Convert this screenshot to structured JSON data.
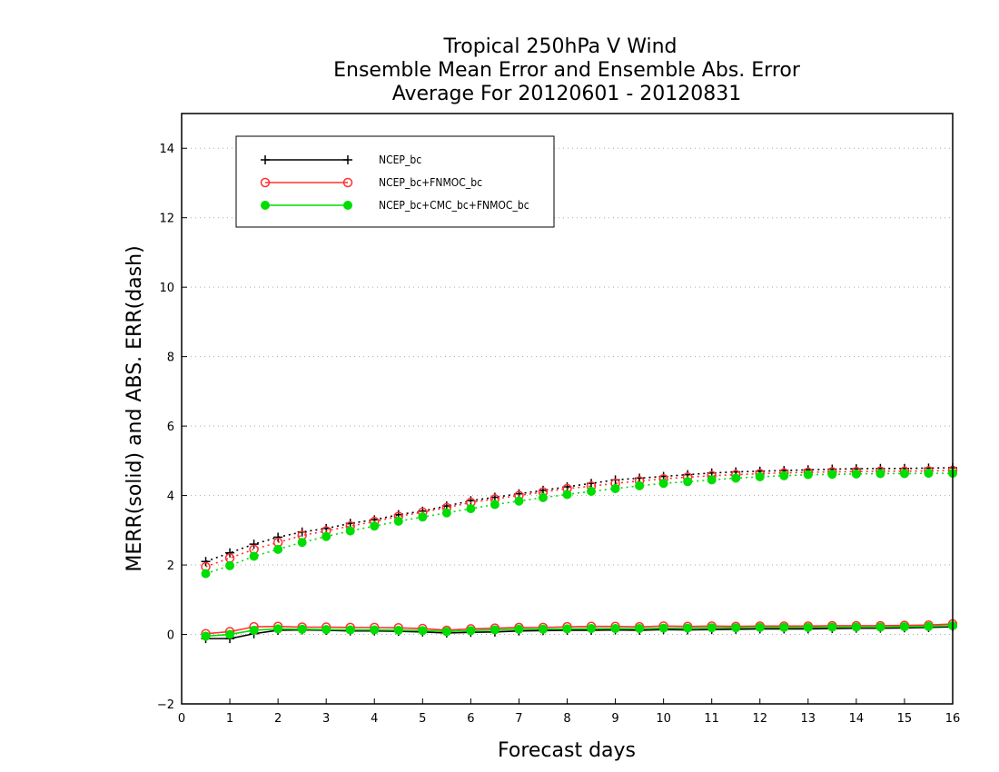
{
  "chart_data": {
    "type": "line",
    "title_lines": [
      "Tropical 250hPa V Wind",
      "Ensemble Mean Error and Ensemble Abs. Error",
      "Average For 20120601 - 20120831"
    ],
    "xlabel": "Forecast days",
    "ylabel": "MERR(solid) and ABS. ERR(dash)",
    "xlim": [
      0,
      16
    ],
    "ylim": [
      -2,
      15
    ],
    "xticks": [
      0,
      1,
      2,
      3,
      4,
      5,
      6,
      7,
      8,
      9,
      10,
      11,
      12,
      13,
      14,
      15,
      16
    ],
    "yticks": [
      -2,
      0,
      2,
      4,
      6,
      8,
      10,
      12,
      14
    ],
    "grid": "horizontal dotted",
    "legend_position": "top-left",
    "x": [
      0.5,
      1.0,
      1.5,
      2.0,
      2.5,
      3.0,
      3.5,
      4.0,
      4.5,
      5.0,
      5.5,
      6.0,
      6.5,
      7.0,
      7.5,
      8.0,
      8.5,
      9.0,
      9.5,
      10.0,
      10.5,
      11.0,
      11.5,
      12.0,
      12.5,
      13.0,
      13.5,
      14.0,
      14.5,
      15.0,
      15.5,
      16.0
    ],
    "series": [
      {
        "name": "NCEP_bc",
        "color": "#000000",
        "marker": "plus",
        "merr": [
          -0.12,
          -0.12,
          0.02,
          0.12,
          0.13,
          0.12,
          0.1,
          0.1,
          0.09,
          0.07,
          0.04,
          0.06,
          0.07,
          0.1,
          0.11,
          0.12,
          0.12,
          0.13,
          0.12,
          0.14,
          0.13,
          0.14,
          0.15,
          0.16,
          0.16,
          0.16,
          0.17,
          0.18,
          0.18,
          0.19,
          0.2,
          0.22
        ],
        "abs_err": [
          2.1,
          2.35,
          2.6,
          2.8,
          2.95,
          3.05,
          3.2,
          3.3,
          3.45,
          3.55,
          3.7,
          3.85,
          3.95,
          4.05,
          4.15,
          4.25,
          4.35,
          4.45,
          4.5,
          4.55,
          4.6,
          4.65,
          4.68,
          4.7,
          4.72,
          4.74,
          4.76,
          4.77,
          4.78,
          4.78,
          4.79,
          4.8
        ]
      },
      {
        "name": "NCEP_bc+FNMOC_bc",
        "color": "#ff3030",
        "marker": "open-circle",
        "merr": [
          0.02,
          0.08,
          0.22,
          0.23,
          0.21,
          0.21,
          0.2,
          0.2,
          0.19,
          0.17,
          0.12,
          0.16,
          0.18,
          0.2,
          0.2,
          0.22,
          0.23,
          0.23,
          0.22,
          0.24,
          0.23,
          0.24,
          0.23,
          0.24,
          0.24,
          0.24,
          0.25,
          0.25,
          0.25,
          0.26,
          0.27,
          0.3
        ],
        "abs_err": [
          1.95,
          2.2,
          2.45,
          2.65,
          2.85,
          2.98,
          3.12,
          3.25,
          3.4,
          3.52,
          3.65,
          3.8,
          3.9,
          4.0,
          4.1,
          4.2,
          4.27,
          4.35,
          4.42,
          4.48,
          4.53,
          4.57,
          4.6,
          4.63,
          4.65,
          4.67,
          4.68,
          4.69,
          4.7,
          4.7,
          4.71,
          4.72
        ]
      },
      {
        "name": "NCEP_bc+CMC_bc+FNMOC_bc",
        "color": "#00dd00",
        "marker": "filled-circle",
        "merr": [
          -0.05,
          0.0,
          0.12,
          0.16,
          0.15,
          0.14,
          0.13,
          0.13,
          0.12,
          0.11,
          0.08,
          0.11,
          0.13,
          0.15,
          0.15,
          0.16,
          0.17,
          0.17,
          0.17,
          0.18,
          0.18,
          0.19,
          0.19,
          0.2,
          0.2,
          0.2,
          0.21,
          0.21,
          0.21,
          0.22,
          0.23,
          0.25
        ],
        "abs_err": [
          1.75,
          1.98,
          2.25,
          2.45,
          2.65,
          2.82,
          2.98,
          3.12,
          3.26,
          3.38,
          3.5,
          3.62,
          3.74,
          3.84,
          3.94,
          4.03,
          4.12,
          4.2,
          4.28,
          4.35,
          4.4,
          4.45,
          4.5,
          4.54,
          4.57,
          4.6,
          4.61,
          4.62,
          4.63,
          4.63,
          4.64,
          4.64
        ]
      }
    ]
  }
}
